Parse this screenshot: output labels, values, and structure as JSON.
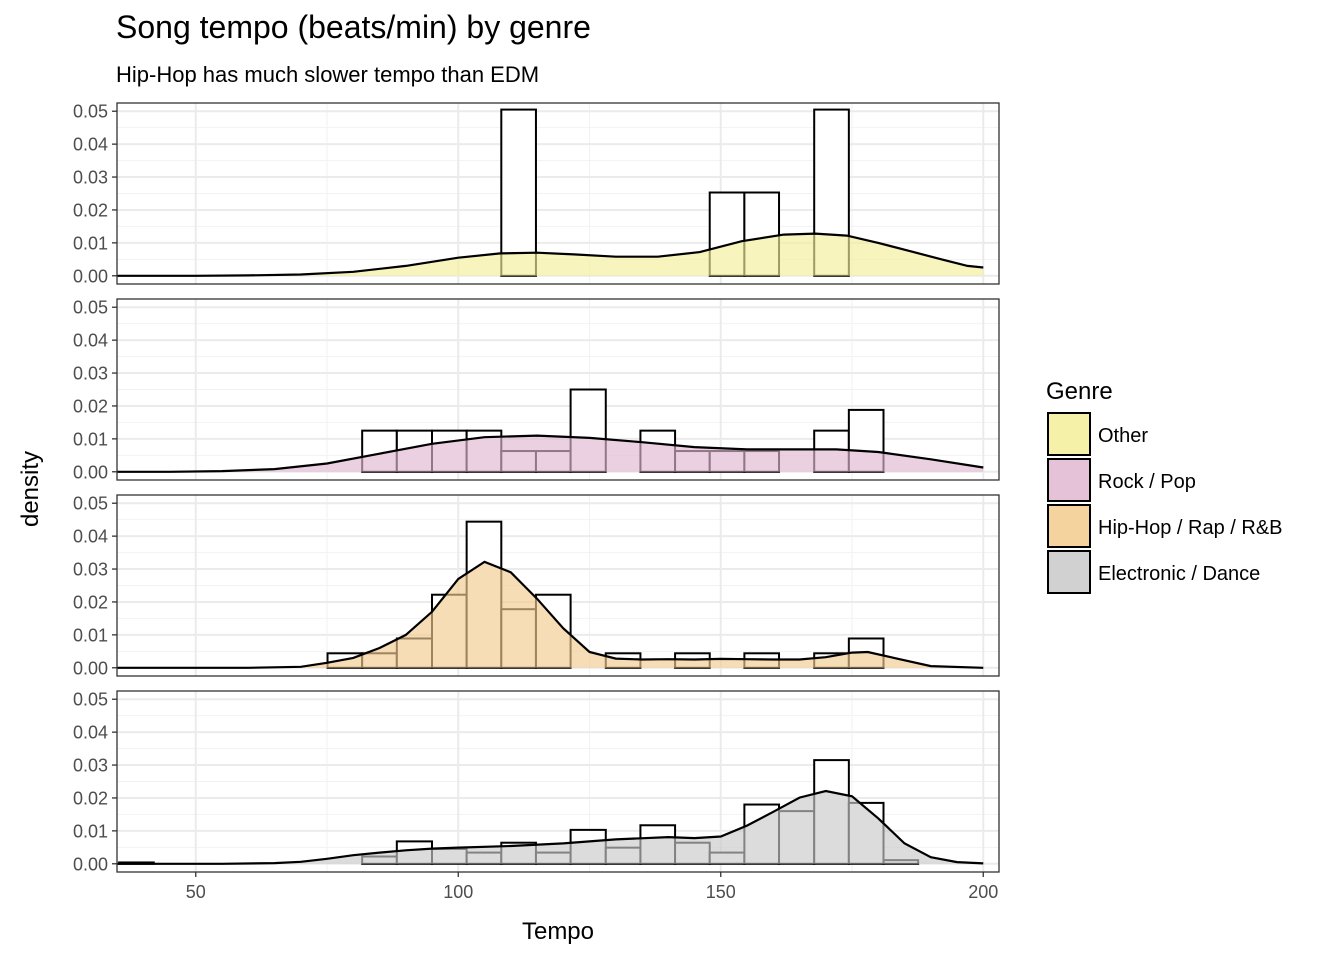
{
  "chart_data": {
    "type": "histogram+density",
    "title": "Song tempo (beats/min) by genre",
    "subtitle": "Hip-Hop has much slower tempo than EDM",
    "xlabel": "Tempo",
    "ylabel": "density",
    "xlim": [
      35,
      203
    ],
    "ylim": [
      -0.0025,
      0.0525
    ],
    "x_ticks": [
      50,
      100,
      150,
      200
    ],
    "y_ticks": [
      0.0,
      0.01,
      0.02,
      0.03,
      0.04,
      0.05
    ],
    "y_tick_labels": [
      "0.00",
      "0.01",
      "0.02",
      "0.03",
      "0.04",
      "0.05"
    ],
    "bin_width": 6.6,
    "legend": {
      "title": "Genre",
      "position": "right"
    },
    "grid": true,
    "panels": [
      {
        "genre": "Other",
        "color": "#F5EE9A",
        "bins": [
          {
            "x0": 108.2,
            "x1": 114.8,
            "density": 0.0505
          },
          {
            "x0": 147.9,
            "x1": 154.5,
            "density": 0.0253
          },
          {
            "x0": 154.5,
            "x1": 161.1,
            "density": 0.0253
          },
          {
            "x0": 167.8,
            "x1": 174.4,
            "density": 0.0505
          }
        ],
        "density": {
          "x": [
            35,
            42,
            50,
            60,
            70,
            80,
            90,
            100,
            108,
            115,
            122,
            130,
            138,
            146,
            154,
            162,
            168,
            174,
            180,
            186,
            192,
            197,
            200
          ],
          "y": [
            0,
            0,
            0,
            0.0001,
            0.0004,
            0.0012,
            0.003,
            0.0055,
            0.0068,
            0.007,
            0.0065,
            0.0058,
            0.0058,
            0.0072,
            0.0105,
            0.0125,
            0.0128,
            0.0122,
            0.01,
            0.0075,
            0.005,
            0.003,
            0.0025
          ]
        }
      },
      {
        "genre": "Rock / Pop",
        "color": "#E0B7D1",
        "bins": [
          {
            "x0": 81.7,
            "x1": 88.3,
            "density": 0.0125
          },
          {
            "x0": 88.3,
            "x1": 95.0,
            "density": 0.0125
          },
          {
            "x0": 95.0,
            "x1": 101.6,
            "density": 0.0125
          },
          {
            "x0": 101.6,
            "x1": 108.2,
            "density": 0.0125
          },
          {
            "x0": 108.2,
            "x1": 114.8,
            "density": 0.0063
          },
          {
            "x0": 114.8,
            "x1": 121.4,
            "density": 0.0063
          },
          {
            "x0": 121.4,
            "x1": 128.1,
            "density": 0.025
          },
          {
            "x0": 128.1,
            "x1": 134.7,
            "density": 0.0
          },
          {
            "x0": 134.7,
            "x1": 141.3,
            "density": 0.0125
          },
          {
            "x0": 141.3,
            "x1": 147.9,
            "density": 0.0063
          },
          {
            "x0": 147.9,
            "x1": 154.5,
            "density": 0.0063
          },
          {
            "x0": 154.5,
            "x1": 161.1,
            "density": 0.0063
          },
          {
            "x0": 161.1,
            "x1": 167.8,
            "density": 0.0
          },
          {
            "x0": 167.8,
            "x1": 174.4,
            "density": 0.0125
          },
          {
            "x0": 174.4,
            "x1": 181.0,
            "density": 0.0188
          }
        ],
        "density": {
          "x": [
            35,
            45,
            55,
            65,
            75,
            85,
            95,
            105,
            115,
            125,
            135,
            145,
            155,
            165,
            172,
            180,
            190,
            200
          ],
          "y": [
            0,
            0,
            0.0002,
            0.0008,
            0.0025,
            0.0055,
            0.0085,
            0.0105,
            0.011,
            0.0103,
            0.009,
            0.0075,
            0.0068,
            0.0068,
            0.0068,
            0.006,
            0.0038,
            0.0013
          ]
        }
      },
      {
        "genre": "Hip-Hop / Rap / R&B",
        "color": "#F2CB8D",
        "bins": [
          {
            "x0": 75.1,
            "x1": 81.7,
            "density": 0.0044
          },
          {
            "x0": 81.7,
            "x1": 88.3,
            "density": 0.0044
          },
          {
            "x0": 88.3,
            "x1": 95.0,
            "density": 0.0089
          },
          {
            "x0": 95.0,
            "x1": 101.6,
            "density": 0.0222
          },
          {
            "x0": 101.6,
            "x1": 108.2,
            "density": 0.0444
          },
          {
            "x0": 108.2,
            "x1": 114.8,
            "density": 0.0178
          },
          {
            "x0": 114.8,
            "x1": 121.4,
            "density": 0.0222
          },
          {
            "x0": 121.4,
            "x1": 128.1,
            "density": 0.0
          },
          {
            "x0": 128.1,
            "x1": 134.7,
            "density": 0.0044
          },
          {
            "x0": 134.7,
            "x1": 141.3,
            "density": 0.0
          },
          {
            "x0": 141.3,
            "x1": 147.9,
            "density": 0.0044
          },
          {
            "x0": 147.9,
            "x1": 154.5,
            "density": 0.0
          },
          {
            "x0": 154.5,
            "x1": 161.1,
            "density": 0.0044
          },
          {
            "x0": 161.1,
            "x1": 167.8,
            "density": 0.0
          },
          {
            "x0": 167.8,
            "x1": 174.4,
            "density": 0.0044
          },
          {
            "x0": 174.4,
            "x1": 181.0,
            "density": 0.0089
          }
        ],
        "density": {
          "x": [
            35,
            50,
            60,
            70,
            75,
            80,
            85,
            90,
            95,
            100,
            105,
            110,
            115,
            120,
            125,
            130,
            135,
            140,
            145,
            150,
            155,
            160,
            165,
            170,
            175,
            178,
            183,
            190,
            200
          ],
          "y": [
            0,
            0,
            0,
            0.0003,
            0.0015,
            0.003,
            0.006,
            0.01,
            0.017,
            0.027,
            0.0322,
            0.029,
            0.021,
            0.012,
            0.0048,
            0.0028,
            0.0025,
            0.0026,
            0.0025,
            0.0027,
            0.0026,
            0.0025,
            0.0025,
            0.0032,
            0.0046,
            0.0048,
            0.003,
            0.0005,
            0.0
          ]
        }
      },
      {
        "genre": "Electronic / Dance",
        "color": "#C9C9C9",
        "bins": [
          {
            "x0": 35.4,
            "x1": 42.0,
            "density": 0.0004
          },
          {
            "x0": 81.7,
            "x1": 88.3,
            "density": 0.0022
          },
          {
            "x0": 88.3,
            "x1": 95.0,
            "density": 0.0068
          },
          {
            "x0": 95.0,
            "x1": 101.6,
            "density": 0.0045
          },
          {
            "x0": 101.6,
            "x1": 108.2,
            "density": 0.0034
          },
          {
            "x0": 108.2,
            "x1": 114.8,
            "density": 0.0064
          },
          {
            "x0": 114.8,
            "x1": 121.4,
            "density": 0.0034
          },
          {
            "x0": 121.4,
            "x1": 128.1,
            "density": 0.0103
          },
          {
            "x0": 128.1,
            "x1": 134.7,
            "density": 0.0049
          },
          {
            "x0": 134.7,
            "x1": 141.3,
            "density": 0.0117
          },
          {
            "x0": 141.3,
            "x1": 147.9,
            "density": 0.0064
          },
          {
            "x0": 147.9,
            "x1": 154.5,
            "density": 0.0034
          },
          {
            "x0": 154.5,
            "x1": 161.1,
            "density": 0.018
          },
          {
            "x0": 161.1,
            "x1": 167.8,
            "density": 0.016
          },
          {
            "x0": 167.8,
            "x1": 174.4,
            "density": 0.0315
          },
          {
            "x0": 174.4,
            "x1": 181.0,
            "density": 0.0185
          },
          {
            "x0": 181.0,
            "x1": 187.6,
            "density": 0.0011
          }
        ],
        "density": {
          "x": [
            35,
            45,
            55,
            65,
            70,
            75,
            80,
            85,
            90,
            95,
            100,
            110,
            120,
            130,
            140,
            145,
            150,
            155,
            160,
            165,
            170,
            175,
            180,
            185,
            190,
            195,
            200
          ],
          "y": [
            0,
            0,
            0,
            0.0002,
            0.0006,
            0.0015,
            0.0026,
            0.0034,
            0.0041,
            0.0046,
            0.0049,
            0.0054,
            0.0062,
            0.0074,
            0.0081,
            0.0078,
            0.0083,
            0.0116,
            0.0158,
            0.0201,
            0.0221,
            0.0205,
            0.0138,
            0.0062,
            0.002,
            0.0005,
            0.0001
          ]
        }
      }
    ]
  }
}
